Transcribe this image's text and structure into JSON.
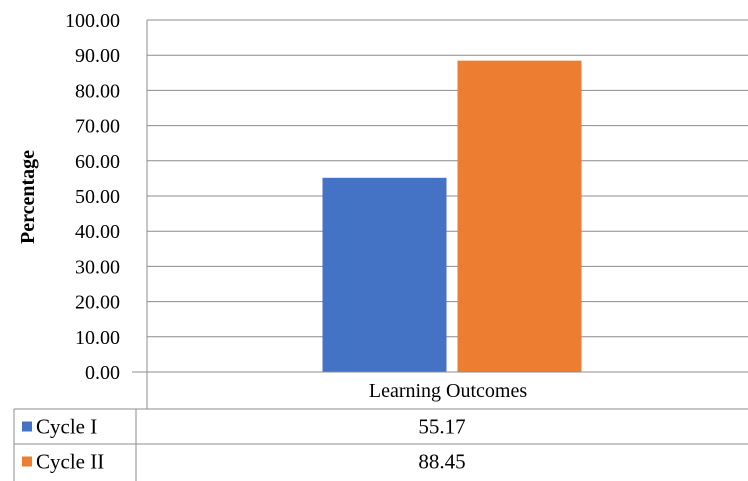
{
  "chart_data": {
    "type": "bar",
    "categories": [
      "Learning Outcomes"
    ],
    "series": [
      {
        "name": "Cycle I",
        "values": [
          55.17
        ],
        "color": "#4472C4"
      },
      {
        "name": "Cycle II",
        "values": [
          88.45
        ],
        "color": "#ED7D31"
      }
    ],
    "ylabel": "Percentage",
    "ylim": [
      0,
      100
    ],
    "y_ticks": [
      "0.00",
      "10.00",
      "20.00",
      "30.00",
      "40.00",
      "50.00",
      "60.00",
      "70.00",
      "80.00",
      "90.00",
      "100.00"
    ],
    "grid": true,
    "legend": "data-table",
    "data_table": [
      {
        "series": "Cycle I",
        "value": "55.17"
      },
      {
        "series": "Cycle II",
        "value": "88.45"
      }
    ]
  }
}
